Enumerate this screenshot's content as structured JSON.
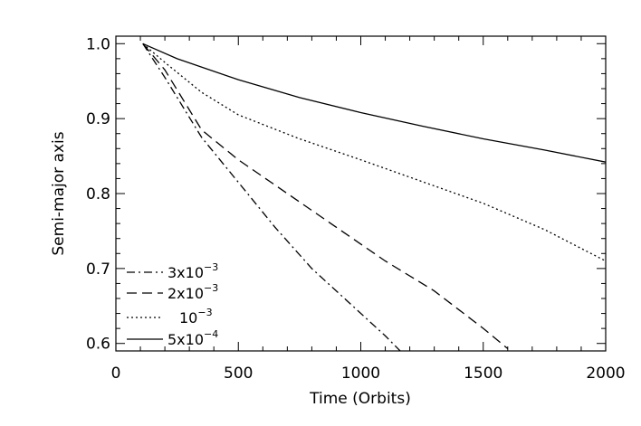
{
  "chart_data": {
    "type": "line",
    "title": "",
    "xlabel": "Time (Orbits)",
    "ylabel": "Semi-major axis",
    "xlim": [
      0,
      2000
    ],
    "ylim": [
      0.59,
      1.01
    ],
    "xticks": [
      0,
      500,
      1000,
      1500,
      2000
    ],
    "yticks": [
      0.6,
      0.7,
      0.8,
      0.9,
      1.0
    ],
    "xtick_labels": [
      "0",
      "500",
      "1000",
      "1500",
      "2000"
    ],
    "ytick_labels": [
      "0.6",
      "0.7",
      "0.8",
      "0.9",
      "1.0"
    ],
    "grid": false,
    "legend_position": "bottom-left",
    "series": [
      {
        "name_base": "3x10",
        "name_exp": "−3",
        "dash": "dashdot",
        "x": [
          110,
          200,
          350,
          500,
          650,
          800,
          950,
          1100,
          1170
        ],
        "y": [
          1.0,
          0.955,
          0.875,
          0.815,
          0.755,
          0.7,
          0.655,
          0.61,
          0.587
        ]
      },
      {
        "name_base": "2x10",
        "name_exp": "−3",
        "dash": "dashed",
        "x": [
          110,
          200,
          350,
          500,
          700,
          900,
          1100,
          1300,
          1500,
          1600
        ],
        "y": [
          1.0,
          0.965,
          0.885,
          0.845,
          0.8,
          0.755,
          0.71,
          0.67,
          0.62,
          0.593
        ]
      },
      {
        "name_base": "10",
        "name_exp": "−3",
        "dash": "dotted",
        "x": [
          110,
          200,
          350,
          500,
          750,
          1000,
          1250,
          1500,
          1750,
          2000
        ],
        "y": [
          1.0,
          0.975,
          0.935,
          0.905,
          0.873,
          0.845,
          0.816,
          0.787,
          0.752,
          0.71
        ],
        "label_prefix_spacing": true
      },
      {
        "name_base": "5x10",
        "name_exp": "−4",
        "dash": "solid",
        "x": [
          110,
          250,
          500,
          750,
          1000,
          1250,
          1500,
          1750,
          2000
        ],
        "y": [
          1.0,
          0.98,
          0.952,
          0.928,
          0.908,
          0.89,
          0.873,
          0.858,
          0.842
        ]
      }
    ]
  }
}
